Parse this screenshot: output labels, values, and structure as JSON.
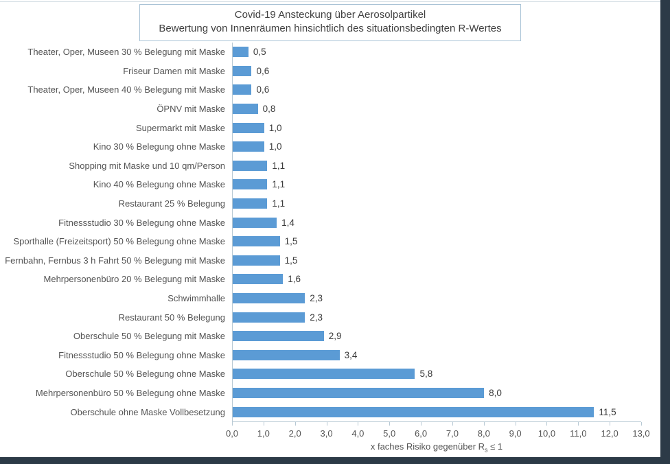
{
  "chart_data": {
    "type": "bar",
    "orientation": "horizontal",
    "title_line1": "Covid-19 Ansteckung über Aerosolpartikel",
    "title_line2": "Bewertung von Innenräumen hinsichtlich des situationsbedingten R-Wertes",
    "xlabel_prefix": "x faches Risiko gegenüber R",
    "xlabel_sub": "s",
    "xlabel_suffix": " ≤ 1",
    "xlim": [
      0,
      13
    ],
    "x_ticks": [
      "0,0",
      "1,0",
      "2,0",
      "3,0",
      "4,0",
      "5,0",
      "6,0",
      "7,0",
      "8,0",
      "9,0",
      "10,0",
      "11,0",
      "12,0",
      "13,0"
    ],
    "grid": false,
    "legend": false,
    "categories": [
      "Theater, Oper, Museen 30 % Belegung mit Maske",
      "Friseur Damen mit Maske",
      "Theater, Oper, Museen 40 % Belegung mit Maske",
      "ÖPNV mit Maske",
      "Supermarkt mit Maske",
      "Kino 30 % Belegung ohne Maske",
      "Shopping mit Maske und 10 qm/Person",
      "Kino 40 % Belegung ohne Maske",
      "Restaurant 25 % Belegung",
      "Fitnessstudio 30 % Belegung ohne Maske",
      "Sporthalle  (Freizeitsport) 50 % Belegung ohne Maske",
      "Fernbahn, Fernbus 3 h Fahrt 50 % Belegung mit Maske",
      "Mehrpersonenbüro 20 % Belegung mit Maske",
      "Schwimmhalle",
      "Restaurant 50 % Belegung",
      "Oberschule 50 % Belegung mit Maske",
      "Fitnessstudio 50 % Belegung ohne Maske",
      "Oberschule 50 % Belegung ohne Maske",
      "Mehrpersonenbüro 50 % Belegung ohne Maske",
      "Oberschule ohne Maske Vollbesetzung"
    ],
    "values": [
      0.5,
      0.6,
      0.6,
      0.8,
      1.0,
      1.0,
      1.1,
      1.1,
      1.1,
      1.4,
      1.5,
      1.5,
      1.6,
      2.3,
      2.3,
      2.9,
      3.4,
      5.8,
      8.0,
      11.5
    ],
    "value_labels": [
      "0,5",
      "0,6",
      "0,6",
      "0,8",
      "1,0",
      "1,0",
      "1,1",
      "1,1",
      "1,1",
      "1,4",
      "1,5",
      "1,5",
      "1,6",
      "2,3",
      "2,3",
      "2,9",
      "3,4",
      "5,8",
      "8,0",
      "11,5"
    ],
    "colors": {
      "bar": "#5b9bd5",
      "axis": "#b7c9d4",
      "frame": "#2c3a47",
      "title_border": "#a9c3d6",
      "label_text": "#545454",
      "value_text": "#3a3a3a"
    }
  }
}
